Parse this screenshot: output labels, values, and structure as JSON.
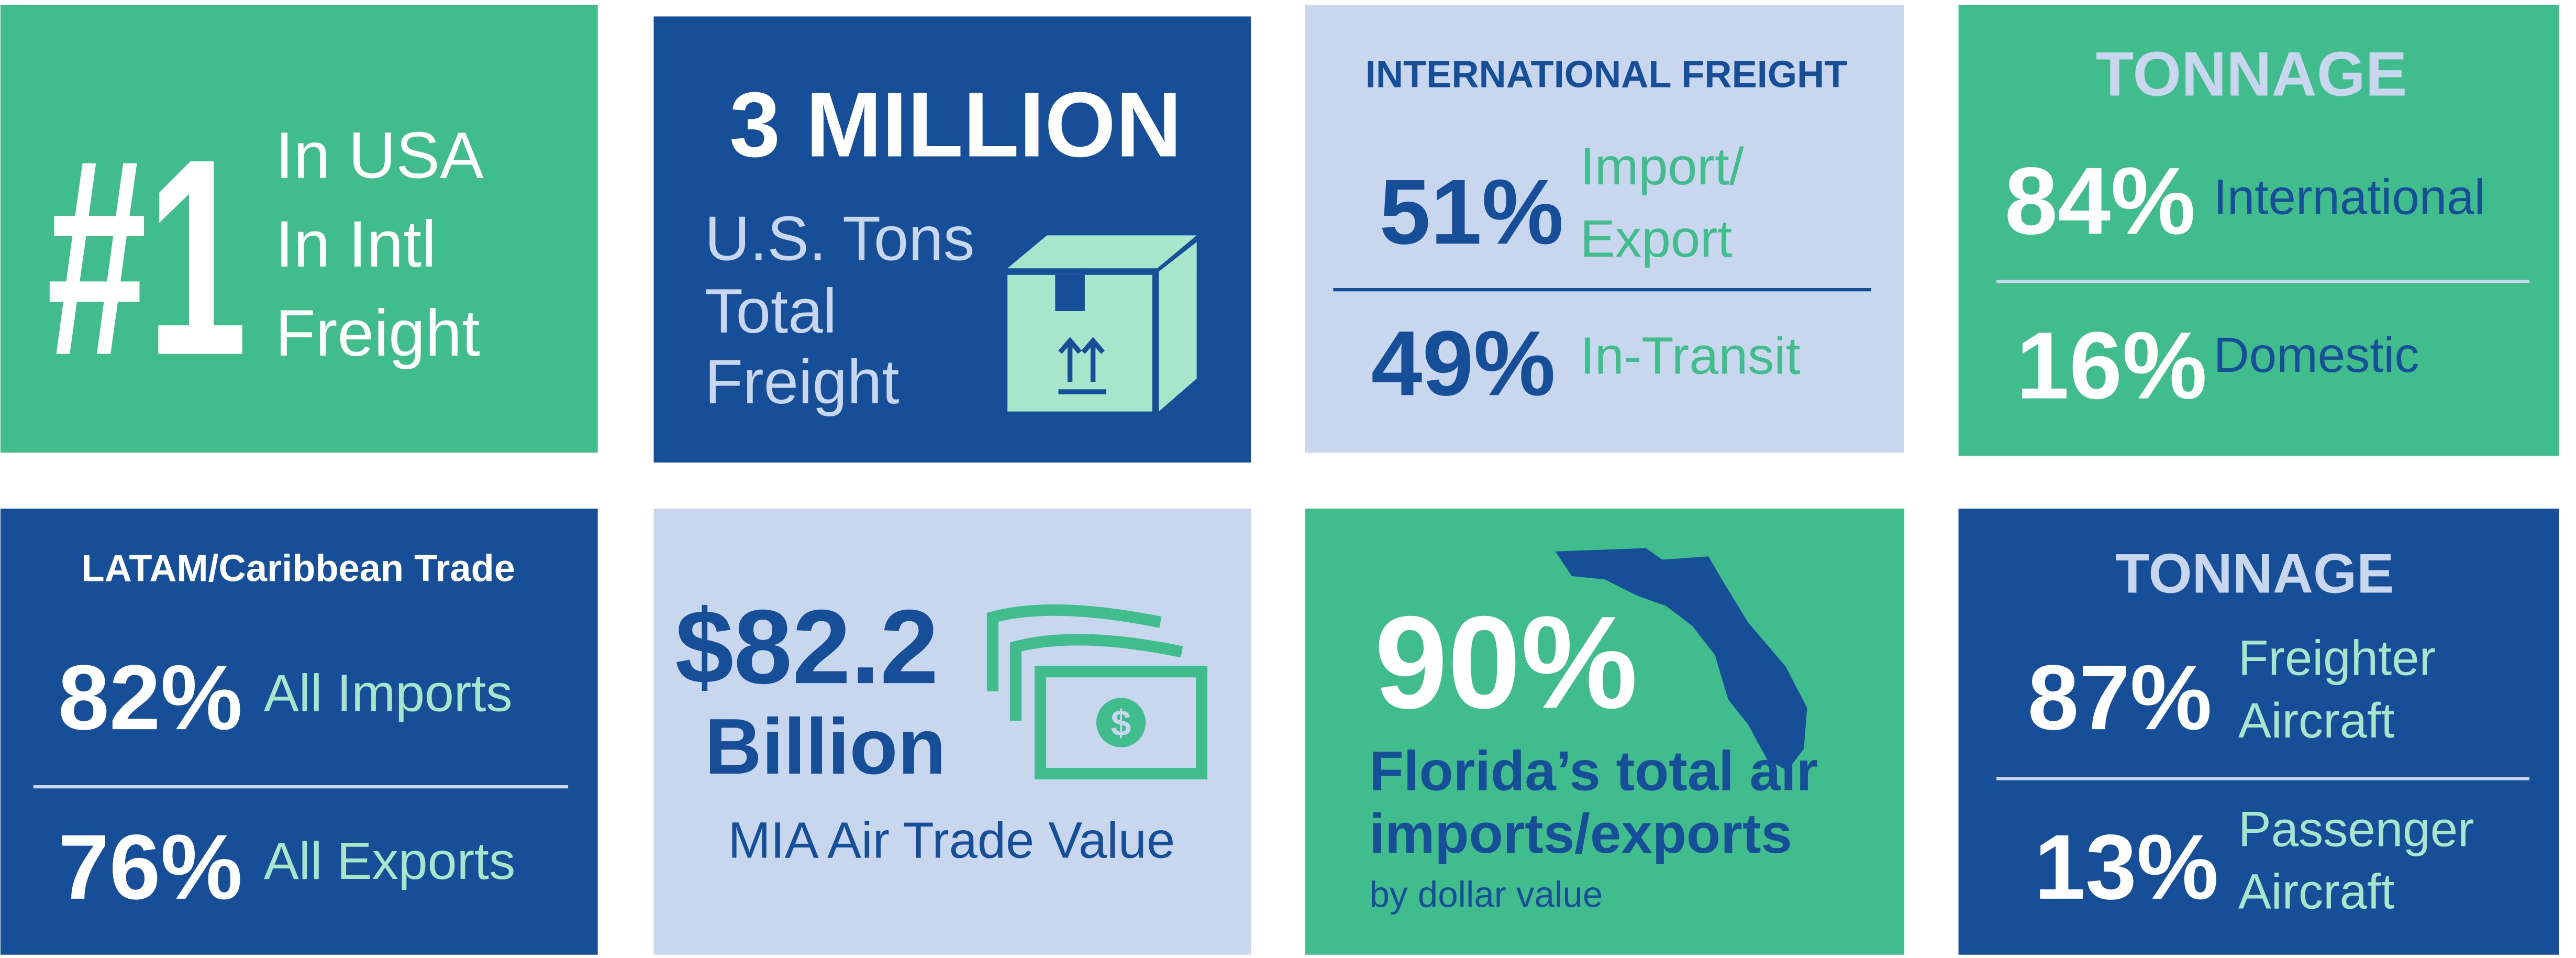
{
  "tiles": [
    {
      "headline": "#1",
      "lines": [
        "In USA",
        "In Intl",
        "Freight"
      ]
    },
    {
      "headline": "3 MILLION",
      "lines": [
        "U.S. Tons",
        "Total",
        "Freight"
      ]
    },
    {
      "title": "INTERNATIONAL FREIGHT",
      "rows": [
        {
          "value": "51%",
          "label": [
            "Import/",
            "Export"
          ]
        },
        {
          "value": "49%",
          "label": [
            "In-Transit"
          ]
        }
      ]
    },
    {
      "title": "TONNAGE",
      "rows": [
        {
          "value": "84%",
          "label": [
            "International"
          ]
        },
        {
          "value": "16%",
          "label": [
            "Domestic"
          ]
        }
      ]
    },
    {
      "title": "LATAM/Caribbean Trade",
      "rows": [
        {
          "value": "82%",
          "label": [
            "All Imports"
          ]
        },
        {
          "value": "76%",
          "label": [
            "All Exports"
          ]
        }
      ]
    },
    {
      "headline": "$82.2",
      "lines": [
        "Billion"
      ],
      "caption": "MIA Air Trade Value"
    },
    {
      "headline": "90%",
      "lines": [
        "Florida’s total air",
        "imports/exports"
      ],
      "caption": "by dollar value"
    },
    {
      "title": "TONNAGE",
      "rows": [
        {
          "value": "87%",
          "label": [
            "Freighter",
            "Aircraft"
          ]
        },
        {
          "value": "13%",
          "label": [
            "Passenger",
            "Aircraft"
          ]
        }
      ]
    }
  ]
}
